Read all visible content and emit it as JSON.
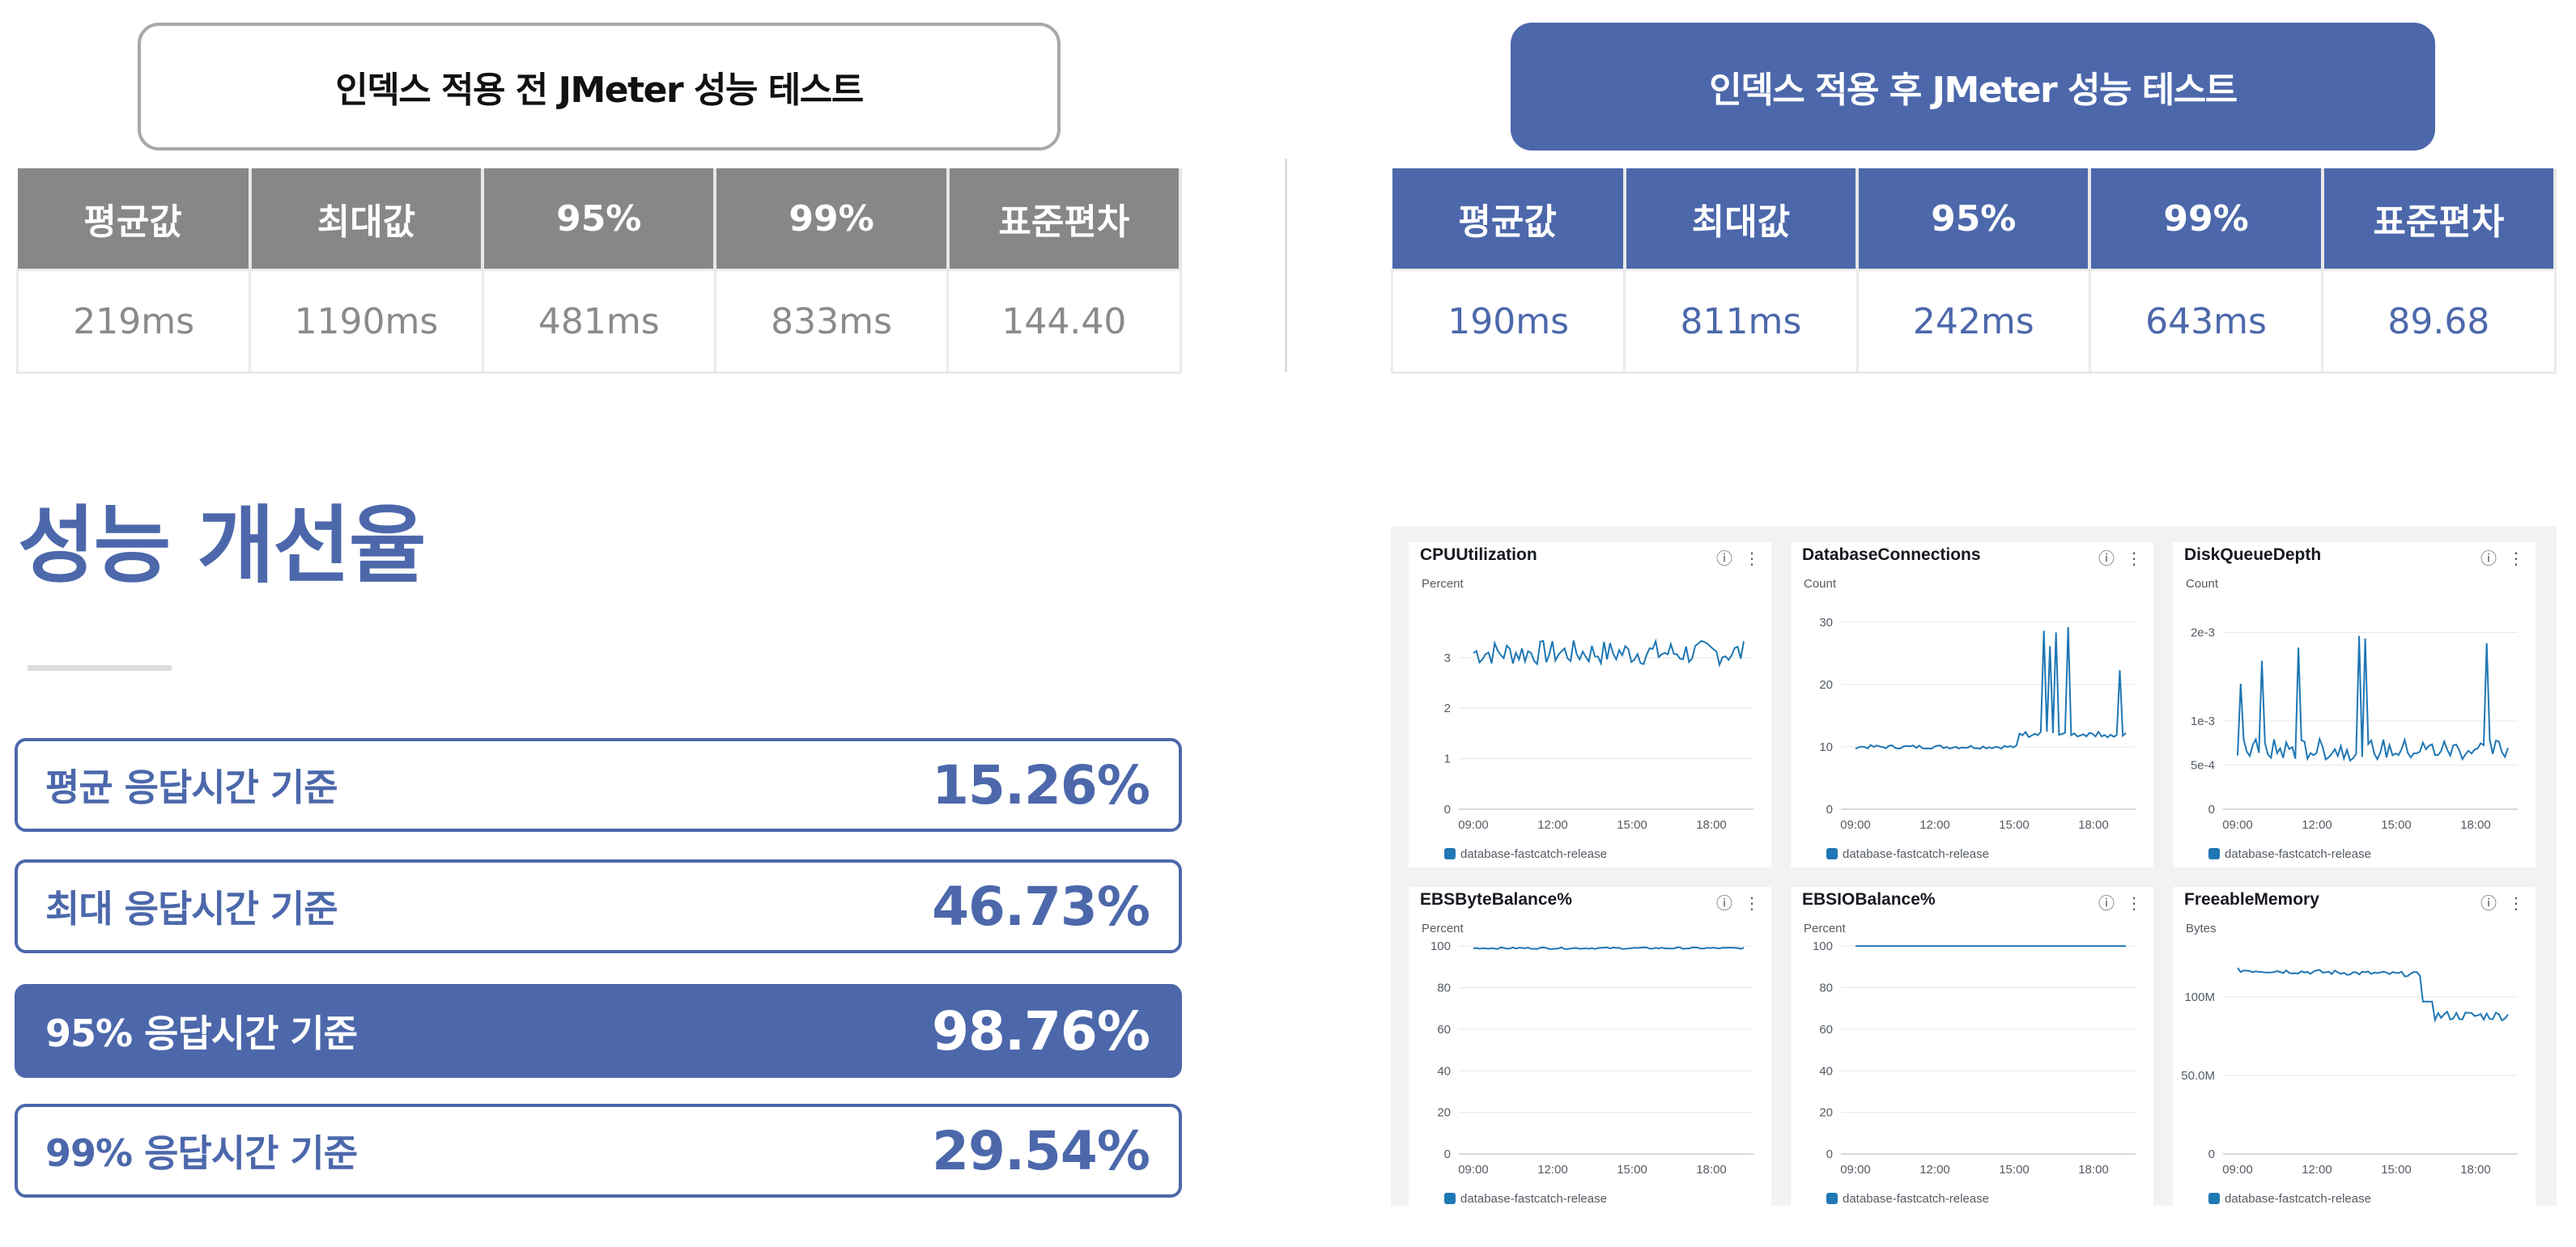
{
  "before": {
    "title": "인덱스 적용 전 JMeter 성능 테스트",
    "headers": [
      "평균값",
      "최대값",
      "95%",
      "99%",
      "표준편차"
    ],
    "values": [
      "219ms",
      "1190ms",
      "481ms",
      "833ms",
      "144.40"
    ]
  },
  "after": {
    "title": "인덱스 적용 후 JMeter 성능 테스트",
    "headers": [
      "평균값",
      "최대값",
      "95%",
      "99%",
      "표준편차"
    ],
    "values": [
      "190ms",
      "811ms",
      "242ms",
      "643ms",
      "89.68"
    ]
  },
  "improvement": {
    "title": "성능 개선율",
    "rows": [
      {
        "label": "평균 응답시간 기준",
        "value": "15.26%"
      },
      {
        "label": "최대 응답시간 기준",
        "value": "46.73%"
      },
      {
        "label": "95% 응답시간 기준",
        "value": "98.76%"
      },
      {
        "label": "99% 응답시간 기준",
        "value": "29.54%"
      }
    ]
  },
  "colors": {
    "accent": "#4c68ab",
    "line": "#1f77b4",
    "grid": "#e6e6e6"
  },
  "dashboard": {
    "icons": [
      "info-icon",
      "more-vertical-icon"
    ],
    "panels": [
      {
        "title": "CPUUtilization",
        "unit": "Percent",
        "yticks": [
          "0",
          "1",
          "2",
          "3"
        ],
        "ymax": 4.2,
        "xticks": [
          "09:00",
          "12:00",
          "15:00",
          "18:00"
        ],
        "legend": "database-fastcatch-release"
      },
      {
        "title": "DatabaseConnections",
        "unit": "Count",
        "yticks": [
          "0",
          "10",
          "20",
          "30"
        ],
        "ymax": 34,
        "xticks": [
          "09:00",
          "12:00",
          "15:00",
          "18:00"
        ],
        "legend": "database-fastcatch-release"
      },
      {
        "title": "DiskQueueDepth",
        "unit": "Count",
        "yticks": [
          "0",
          "5e-4",
          "1e-3",
          "2e-3"
        ],
        "ymax": 2.4,
        "xticks": [
          "09:00",
          "12:00",
          "15:00",
          "18:00"
        ],
        "legend": "database-fastcatch-release"
      },
      {
        "title": "EBSByteBalance%",
        "unit": "Percent",
        "yticks": [
          "0",
          "20",
          "40",
          "60",
          "80",
          "100"
        ],
        "ymax": 102,
        "xticks": [
          "09:00",
          "12:00",
          "15:00",
          "18:00"
        ],
        "legend": "database-fastcatch-release"
      },
      {
        "title": "EBSIOBalance%",
        "unit": "Percent",
        "yticks": [
          "0",
          "20",
          "40",
          "60",
          "80",
          "100"
        ],
        "ymax": 102,
        "xticks": [
          "09:00",
          "12:00",
          "15:00",
          "18:00"
        ],
        "legend": "database-fastcatch-release"
      },
      {
        "title": "FreeableMemory",
        "unit": "Bytes",
        "yticks": [
          "0",
          "50.0M",
          "100M"
        ],
        "ymax": 135,
        "xticks": [
          "09:00",
          "12:00",
          "15:00",
          "18:00"
        ],
        "legend": "database-fastcatch-release"
      }
    ]
  }
}
